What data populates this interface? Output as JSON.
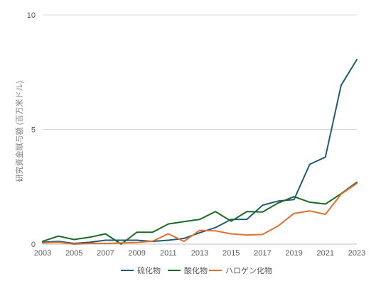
{
  "chart_data": {
    "type": "line",
    "ylabel": "研究資金賦与額 (百万米ドル)",
    "ylim": [
      0,
      10
    ],
    "yticks": [
      0,
      5,
      10
    ],
    "x": [
      2003,
      2004,
      2005,
      2006,
      2007,
      2008,
      2009,
      2010,
      2011,
      2012,
      2013,
      2014,
      2015,
      2016,
      2017,
      2018,
      2019,
      2020,
      2021,
      2022,
      2023
    ],
    "xticks": [
      2003,
      2005,
      2007,
      2009,
      2011,
      2013,
      2015,
      2017,
      2019,
      2021,
      2023
    ],
    "grid": "horizontal",
    "legend": "bottom",
    "series": [
      {
        "name": "硫化物",
        "color": "#1f5c7a",
        "values": [
          0.08,
          0.12,
          0.03,
          0.08,
          0.17,
          0.17,
          0.17,
          0.12,
          0.17,
          0.25,
          0.5,
          0.72,
          1.08,
          1.08,
          1.7,
          1.88,
          1.94,
          3.48,
          3.8,
          6.93,
          8.05
        ]
      },
      {
        "name": "酸化物",
        "color": "#1a6b22",
        "values": [
          0.12,
          0.35,
          0.2,
          0.3,
          0.45,
          0.0,
          0.52,
          0.52,
          0.88,
          0.98,
          1.08,
          1.42,
          1.0,
          1.42,
          1.4,
          1.8,
          2.07,
          1.83,
          1.75,
          2.2,
          2.7
        ]
      },
      {
        "name": "ハロゲン化物",
        "color": "#e07030",
        "values": [
          0.05,
          0.08,
          0.0,
          0.03,
          0.03,
          0.05,
          0.07,
          0.13,
          0.45,
          0.12,
          0.6,
          0.58,
          0.45,
          0.4,
          0.42,
          0.8,
          1.34,
          1.45,
          1.3,
          2.18,
          2.65
        ]
      }
    ]
  }
}
